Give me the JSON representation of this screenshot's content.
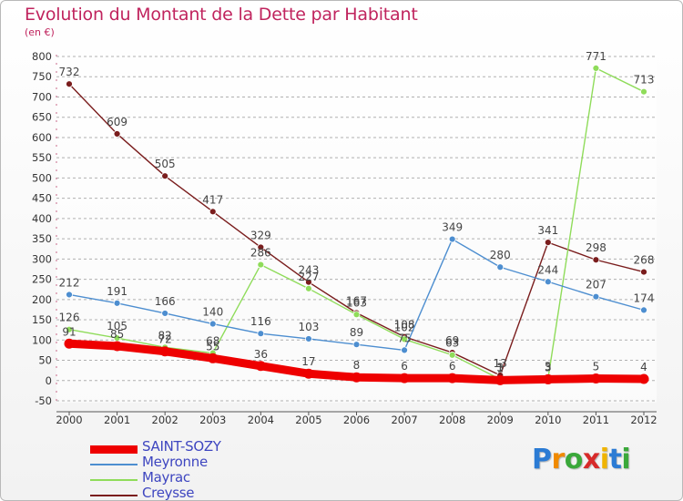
{
  "title": "Evolution du Montant de la Dette par Habitant",
  "unit_label": "(en €)",
  "logo": {
    "text": "Proxiti",
    "letter_colors": [
      "#2b7bd4",
      "#f08a00",
      "#3aa83a",
      "#d72a2a",
      "#f0b400",
      "#2b7bd4",
      "#3aa83a"
    ]
  },
  "chart_data": {
    "type": "line",
    "title": "Evolution du Montant de la Dette par Habitant",
    "ylabel": "(en €)",
    "xlabel": "",
    "ylim": [
      -50,
      800
    ],
    "yticks": [
      -50,
      0,
      50,
      100,
      150,
      200,
      250,
      300,
      350,
      400,
      450,
      500,
      550,
      600,
      650,
      700,
      750,
      800
    ],
    "ytick_labels": [
      "-50",
      "0",
      "50",
      "100",
      "150",
      "200",
      "250",
      "300",
      "350",
      "400",
      "450",
      "500",
      "550",
      "600",
      "650",
      "700",
      "750",
      "800"
    ],
    "x": [
      "2000",
      "2001",
      "2002",
      "2003",
      "2004",
      "2005",
      "2006",
      "2007",
      "2008",
      "2009",
      "2010",
      "2011",
      "2012"
    ],
    "grid": "horizontal dashed",
    "legend_position": "bottom-left",
    "series": [
      {
        "name": "Creysse",
        "color": "#7a1d1d",
        "values": [
          732,
          609,
          505,
          417,
          329,
          243,
          167,
          108,
          69,
          13,
          341,
          298,
          268
        ],
        "labels": [
          "732",
          "609",
          "505",
          "417",
          "329",
          "243",
          "167",
          "108",
          "69",
          "13",
          "341",
          "298",
          "268"
        ]
      },
      {
        "name": "Mayrac",
        "color": "#8fdc5a",
        "values": [
          126,
          105,
          82,
          68,
          286,
          227,
          163,
          102,
          63,
          3,
          5,
          771,
          713
        ],
        "labels": [
          "126",
          "105",
          "82",
          "68",
          "286",
          "227",
          "163",
          "102",
          "63",
          "3",
          "5",
          "771",
          "713"
        ]
      },
      {
        "name": "Meyronne",
        "color": "#4d8ed0",
        "values": [
          212,
          191,
          166,
          140,
          116,
          103,
          89,
          75,
          349,
          280,
          244,
          207,
          174
        ],
        "labels": [
          "212",
          "191",
          "166",
          "140",
          "116",
          "103",
          "89",
          "75",
          "349",
          "280",
          "244",
          "207",
          "174"
        ]
      },
      {
        "name": "SAINT-SOZY",
        "color": "#ee0000",
        "values": [
          91,
          85,
          72,
          55,
          36,
          17,
          8,
          6,
          6,
          1,
          3,
          5,
          4
        ],
        "labels": [
          "91",
          "85",
          "72",
          "55",
          "36",
          "17",
          "8",
          "6",
          "6",
          "1",
          "3",
          "5",
          "4"
        ]
      }
    ],
    "legend_order": [
      "SAINT-SOZY",
      "Meyronne",
      "Mayrac",
      "Creysse"
    ]
  }
}
